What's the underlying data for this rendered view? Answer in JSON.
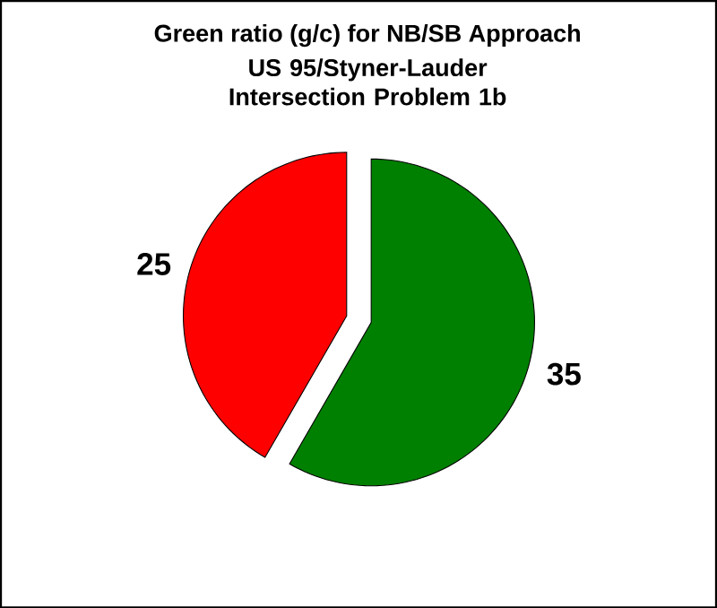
{
  "chart_data": {
    "type": "pie",
    "title": "Green ratio (g/c) for NB/SB Approach",
    "subtitle": "US 95/Styner-Lauder Intersection Problem 1b",
    "categories": [
      null,
      null
    ],
    "values": [
      35,
      25
    ],
    "colors": [
      "#008000",
      "#ff0000"
    ],
    "value_labels": [
      "35",
      "25"
    ]
  }
}
